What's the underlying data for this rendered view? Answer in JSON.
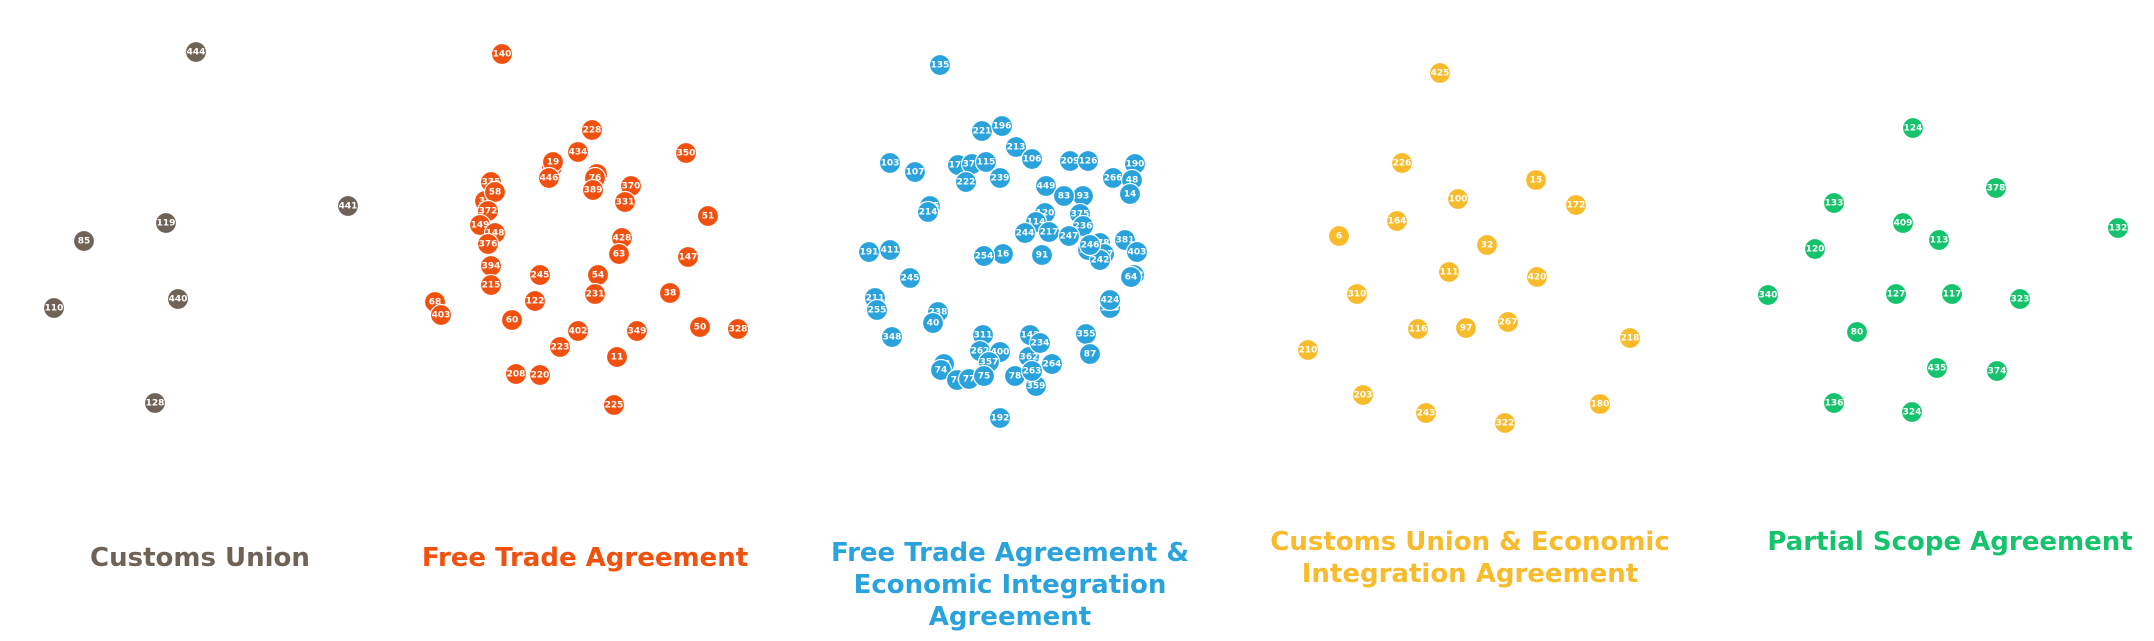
{
  "chart_data": [
    {
      "type": "scatter",
      "title": "Customs Union",
      "color": "#6f6357",
      "nodes": [
        "444",
        "441",
        "119",
        "85",
        "440",
        "110",
        "128"
      ]
    },
    {
      "type": "scatter",
      "title": "Free Trade Agreement",
      "color": "#f2500f",
      "nodes": [
        "140",
        "228",
        "434",
        "350",
        "367",
        "19",
        "65",
        "76",
        "370",
        "335",
        "446",
        "389",
        "331",
        "34",
        "58",
        "372",
        "149",
        "148",
        "376",
        "428",
        "51",
        "63",
        "147",
        "394",
        "215",
        "54",
        "231",
        "38",
        "68",
        "403",
        "122",
        "60",
        "402",
        "349",
        "50",
        "328",
        "223",
        "11",
        "208",
        "220",
        "225",
        "245"
      ]
    },
    {
      "type": "scatter",
      "title": "Free Trade Agreement & Economic Integration Agreement",
      "color": "#2aa3dc",
      "nodes": [
        "135",
        "221",
        "196",
        "213",
        "106",
        "103",
        "107",
        "173",
        "373",
        "115",
        "209",
        "126",
        "190",
        "266",
        "48",
        "14",
        "222",
        "239",
        "449",
        "93",
        "83",
        "375",
        "175",
        "214",
        "120",
        "114",
        "217",
        "236",
        "247",
        "278",
        "244",
        "91",
        "381",
        "16",
        "254",
        "227",
        "139",
        "242",
        "403",
        "246",
        "402",
        "411",
        "191",
        "245",
        "64",
        "211",
        "255",
        "238",
        "40",
        "348",
        "311",
        "262",
        "355",
        "87",
        "400",
        "357",
        "73",
        "74",
        "76",
        "77",
        "75",
        "78",
        "359",
        "362",
        "263",
        "264",
        "192",
        "143",
        "234",
        "313",
        "424"
      ]
    },
    {
      "type": "scatter",
      "title": "Customs Union & Economic Integration Agreement",
      "color": "#f8bb2c",
      "nodes": [
        "425",
        "226",
        "15",
        "100",
        "172",
        "164",
        "6",
        "32",
        "111",
        "420",
        "310",
        "116",
        "97",
        "267",
        "218",
        "210",
        "203",
        "243",
        "322",
        "180"
      ]
    },
    {
      "type": "scatter",
      "title": "Partial Scope Agreement",
      "color": "#16c36d",
      "nodes": [
        "124",
        "378",
        "133",
        "409",
        "132",
        "120",
        "113",
        "340",
        "127",
        "117",
        "323",
        "80",
        "435",
        "374",
        "136",
        "324"
      ]
    }
  ]
}
